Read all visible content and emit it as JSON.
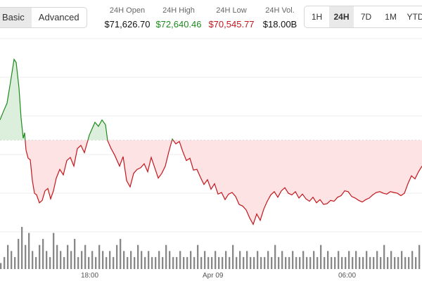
{
  "view_toggle": {
    "basic_label": "Basic",
    "advanced_label": "Advanced",
    "active": "Basic"
  },
  "stats": {
    "open": {
      "label": "24H Open",
      "value": "$71,626.70"
    },
    "high": {
      "label": "24H High",
      "value": "$72,640.46"
    },
    "low": {
      "label": "24H Low",
      "value": "$70,545.77"
    },
    "volume": {
      "label": "24H Vol.",
      "value": "$18.00B"
    }
  },
  "colors": {
    "up": "#1e8a1e",
    "down": "#c4161c",
    "up_fill": "#dcefdc",
    "down_fill": "#fde3e3",
    "volume": "#888888"
  },
  "ranges": {
    "items": [
      "1H",
      "24H",
      "7D",
      "1M",
      "YTD"
    ],
    "active": "24H"
  },
  "chart_data": {
    "type": "area",
    "baseline": 71626.7,
    "x_tick_labels": [
      "18:00",
      "Apr 09",
      "06:00"
    ],
    "price": [
      [
        0,
        71880
      ],
      [
        0.5,
        71990
      ],
      [
        1,
        72090
      ],
      [
        1.5,
        72360
      ],
      [
        2,
        72640
      ],
      [
        2.3,
        72600
      ],
      [
        2.7,
        72280
      ],
      [
        3,
        71900
      ],
      [
        3.3,
        71650
      ],
      [
        3.5,
        71720
      ],
      [
        3.7,
        71500
      ],
      [
        4,
        71400
      ],
      [
        4.3,
        71380
      ],
      [
        4.6,
        71120
      ],
      [
        4.9,
        70960
      ],
      [
        5.2,
        70940
      ],
      [
        5.6,
        70840
      ],
      [
        6,
        70870
      ],
      [
        6.4,
        70990
      ],
      [
        6.8,
        71020
      ],
      [
        7.2,
        70890
      ],
      [
        7.6,
        70990
      ],
      [
        8,
        71150
      ],
      [
        8.5,
        71260
      ],
      [
        9,
        71190
      ],
      [
        9.5,
        71370
      ],
      [
        10,
        71410
      ],
      [
        10.5,
        71300
      ],
      [
        11,
        71520
      ],
      [
        11.5,
        71560
      ],
      [
        12,
        71470
      ],
      [
        12.7,
        71690
      ],
      [
        13.5,
        71850
      ],
      [
        14,
        71800
      ],
      [
        14.5,
        71880
      ],
      [
        15,
        71820
      ],
      [
        15.3,
        71620
      ],
      [
        15.8,
        71520
      ],
      [
        16.3,
        71440
      ],
      [
        17,
        71300
      ],
      [
        17.5,
        71420
      ],
      [
        18,
        71120
      ],
      [
        18.5,
        71040
      ],
      [
        19,
        71210
      ],
      [
        19.5,
        71260
      ],
      [
        20,
        71280
      ],
      [
        20.5,
        71330
      ],
      [
        21,
        71230
      ],
      [
        21.5,
        71410
      ],
      [
        22,
        71280
      ],
      [
        22.5,
        71150
      ],
      [
        23,
        71210
      ],
      [
        23.5,
        71300
      ],
      [
        24,
        71480
      ],
      [
        24.5,
        71640
      ],
      [
        25,
        71580
      ],
      [
        25.5,
        71610
      ],
      [
        26,
        71480
      ],
      [
        26.5,
        71370
      ],
      [
        27,
        71400
      ],
      [
        27.5,
        71250
      ],
      [
        28,
        71260
      ],
      [
        28.5,
        71160
      ],
      [
        29,
        71070
      ],
      [
        29.5,
        71130
      ],
      [
        30,
        71010
      ],
      [
        30.5,
        71080
      ],
      [
        31,
        70950
      ],
      [
        31.5,
        70970
      ],
      [
        32,
        70880
      ],
      [
        32.5,
        70950
      ],
      [
        33,
        70970
      ],
      [
        33.5,
        70920
      ],
      [
        34,
        70820
      ],
      [
        34.5,
        70800
      ],
      [
        35,
        70750
      ],
      [
        35.5,
        70650
      ],
      [
        36,
        70570
      ],
      [
        36.5,
        70700
      ],
      [
        37,
        70620
      ],
      [
        37.5,
        70760
      ],
      [
        38,
        70860
      ],
      [
        38.5,
        70940
      ],
      [
        39,
        70980
      ],
      [
        39.5,
        70910
      ],
      [
        40,
        70990
      ],
      [
        40.5,
        71030
      ],
      [
        41,
        70960
      ],
      [
        41.5,
        70940
      ],
      [
        42,
        70980
      ],
      [
        42.5,
        70900
      ],
      [
        43,
        70950
      ],
      [
        43.5,
        70890
      ],
      [
        44,
        70860
      ],
      [
        44.5,
        70910
      ],
      [
        45,
        70840
      ],
      [
        45.5,
        70880
      ],
      [
        46,
        70820
      ],
      [
        46.5,
        70830
      ],
      [
        47,
        70870
      ],
      [
        47.5,
        70860
      ],
      [
        48,
        70910
      ],
      [
        48.5,
        70930
      ],
      [
        49,
        70990
      ],
      [
        49.5,
        70980
      ],
      [
        50,
        70920
      ],
      [
        50.5,
        70900
      ],
      [
        51,
        70870
      ],
      [
        51.5,
        70850
      ],
      [
        52,
        70880
      ],
      [
        52.5,
        70900
      ],
      [
        53,
        70940
      ],
      [
        53.5,
        70970
      ],
      [
        54,
        70980
      ],
      [
        54.5,
        70960
      ],
      [
        55,
        70950
      ],
      [
        55.5,
        70980
      ],
      [
        56,
        70970
      ],
      [
        56.5,
        70960
      ],
      [
        57,
        70930
      ],
      [
        57.5,
        70960
      ],
      [
        58,
        71080
      ],
      [
        58.5,
        71180
      ],
      [
        59,
        71140
      ],
      [
        59.5,
        71230
      ],
      [
        60,
        71300
      ]
    ],
    "volume": [
      1,
      2,
      4,
      3,
      2,
      5,
      7,
      4,
      6,
      3,
      2,
      4,
      5,
      3,
      2,
      6,
      4,
      3,
      2,
      4,
      3,
      5,
      2,
      3,
      4,
      2,
      3,
      2,
      4,
      3,
      2,
      3,
      2,
      4,
      5,
      3,
      2,
      3,
      2,
      4,
      3,
      2,
      3,
      2,
      2,
      3,
      2,
      4,
      3,
      2,
      2,
      3,
      2,
      2,
      3,
      2,
      4,
      2,
      3,
      2,
      2,
      3,
      2,
      2,
      3,
      2,
      4,
      2,
      3,
      2,
      3,
      2,
      2,
      3,
      2,
      2,
      3,
      2,
      4,
      2,
      3,
      2,
      2,
      3,
      2,
      2,
      3,
      2,
      2,
      3,
      2,
      4,
      2,
      3,
      2,
      2,
      3,
      2,
      2,
      3,
      2,
      3,
      2,
      2,
      3,
      2,
      2,
      3,
      2,
      4,
      2,
      3,
      2,
      2,
      3,
      2,
      2,
      3,
      2,
      4
    ]
  }
}
